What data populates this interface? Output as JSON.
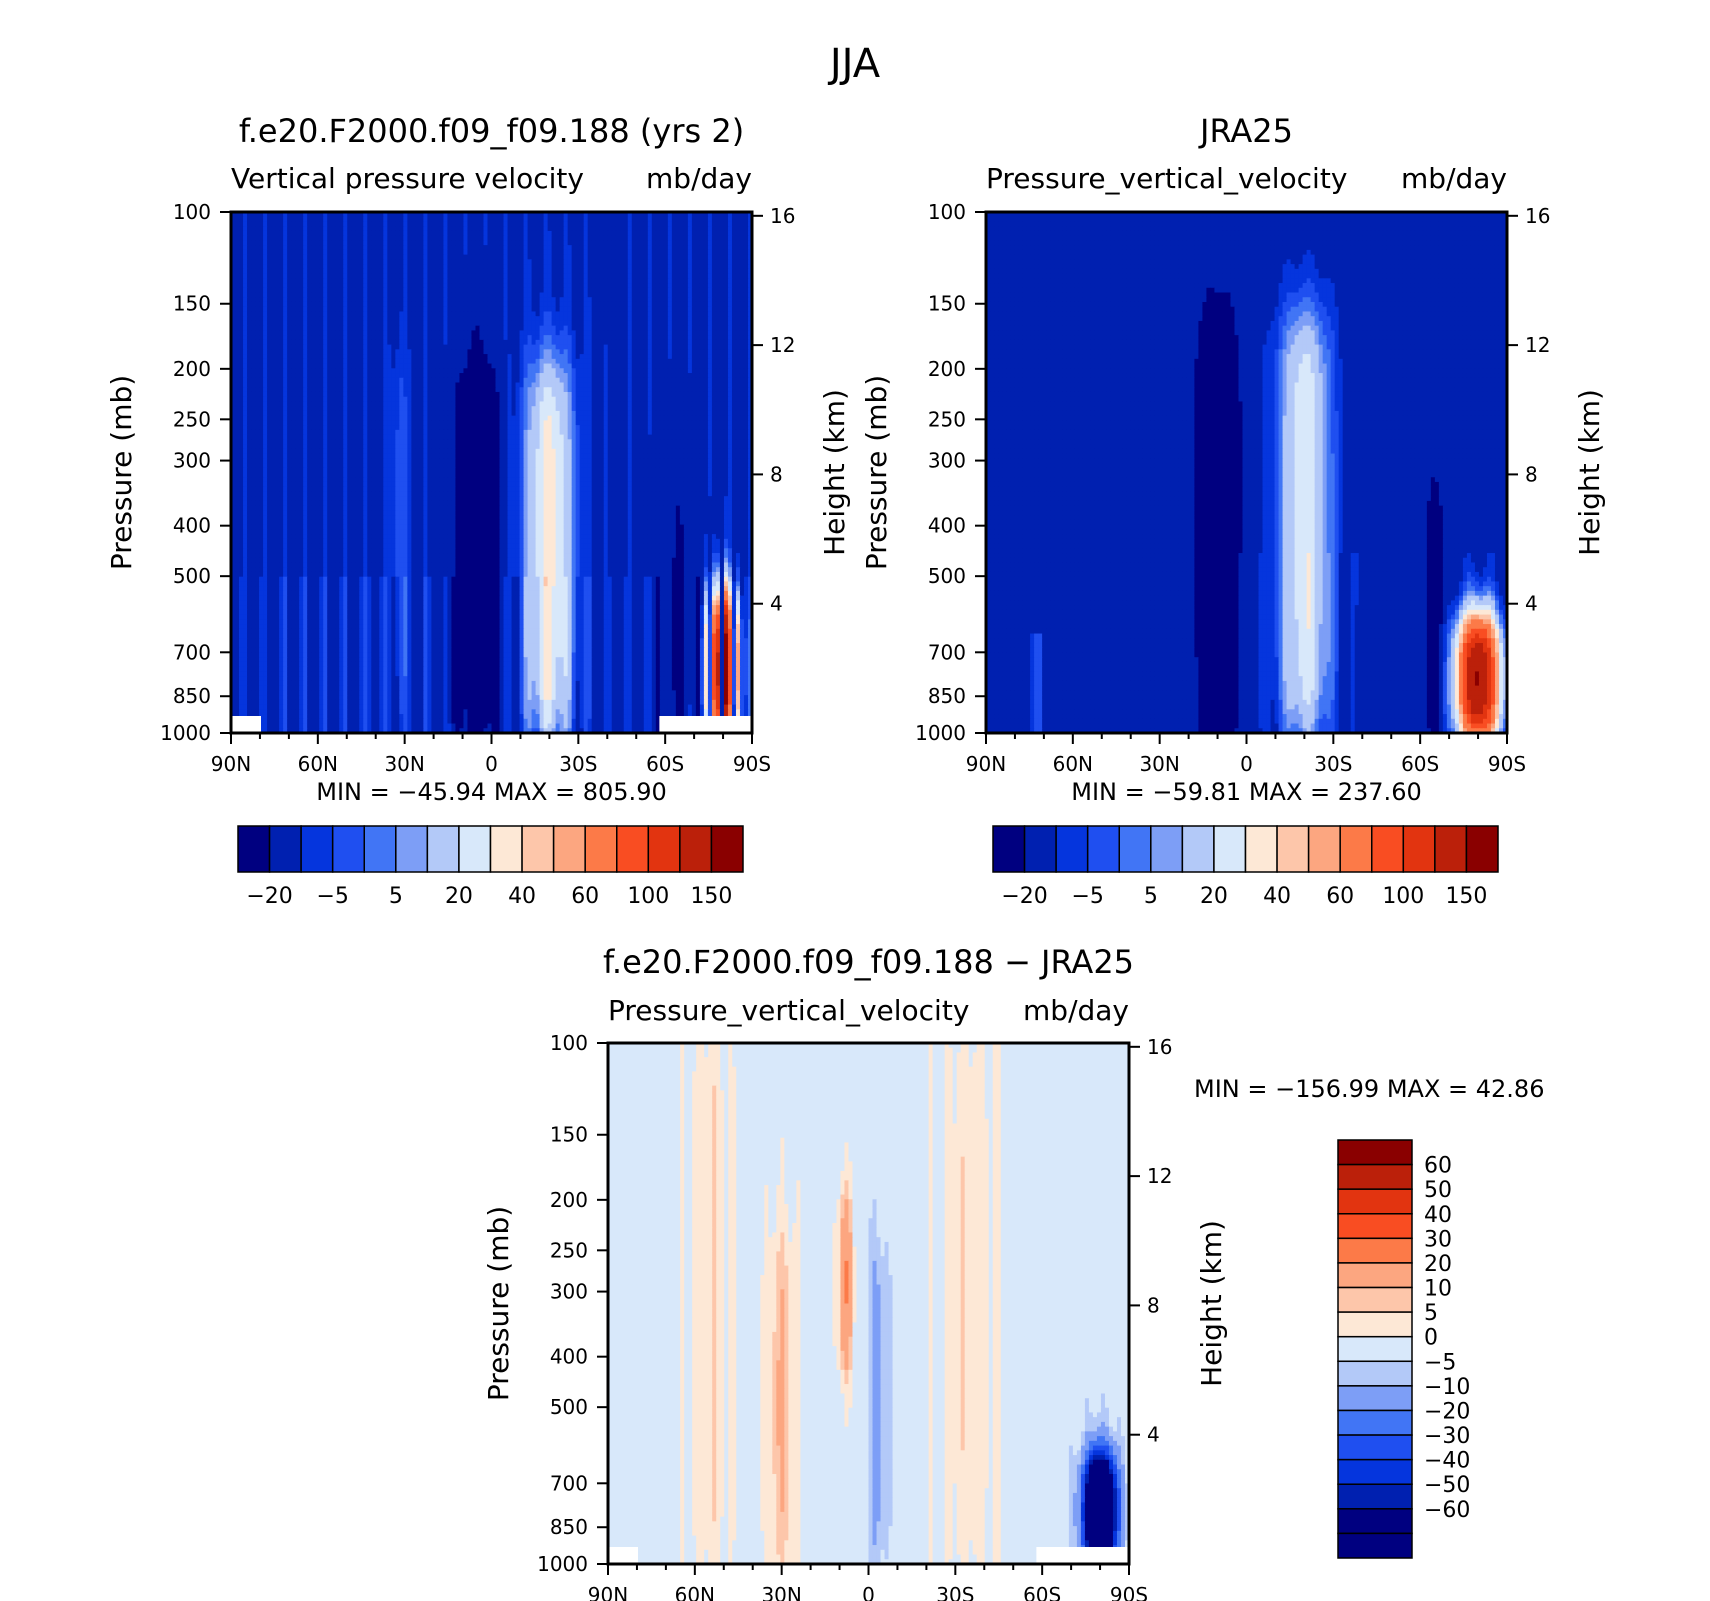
{
  "figure_title": "JJA",
  "palettes": {
    "abs": [
      "#000080",
      "#0020b0",
      "#0535dd",
      "#1f4ff0",
      "#4175f5",
      "#7d9ef6",
      "#b3c9f8",
      "#d8e8fa",
      "#fde8d6",
      "#fdc6aa",
      "#fca680",
      "#fc7a48",
      "#f94d22",
      "#e23410",
      "#bb200a",
      "#8a0000"
    ],
    "diff": [
      "#000080",
      "#0020b0",
      "#0535dd",
      "#1f4ff0",
      "#4175f5",
      "#7d9ef6",
      "#b3c9f8",
      "#d8e8fa",
      "#fde8d6",
      "#fdc6aa",
      "#fca680",
      "#fc7a48",
      "#f94d22",
      "#e23410",
      "#bb200a",
      "#8a0000"
    ]
  },
  "panels": [
    {
      "id": "model",
      "title": "f.e20.F2000.f09_f09.188 (yrs 2)",
      "subtitle_left": "Vertical pressure velocity",
      "subtitle_right": "mb/day",
      "ylabel": "Pressure (mb)",
      "ylabel2": "Height (km)",
      "min_max": "MIN = −45.94   MAX = 805.90",
      "colorbar_labels": [
        "−20",
        "−5",
        "5",
        "20",
        "40",
        "60",
        "100",
        "150"
      ]
    },
    {
      "id": "obs",
      "title": "JRA25",
      "subtitle_left": "Pressure_vertical_velocity",
      "subtitle_right": "mb/day",
      "ylabel": "Pressure (mb)",
      "ylabel2": "Height (km)",
      "min_max": "MIN = −59.81   MAX = 237.60",
      "colorbar_labels": [
        "−20",
        "−5",
        "5",
        "20",
        "40",
        "60",
        "100",
        "150"
      ]
    },
    {
      "id": "diff",
      "title": "f.e20.F2000.f09_f09.188 − JRA25",
      "subtitle_left": "Pressure_vertical_velocity",
      "subtitle_right": "mb/day",
      "ylabel": "Pressure (mb)",
      "ylabel2": "Height (km)",
      "min_max": "MIN = −156.99   MAX =   42.86",
      "colorbar_labels": [
        "60",
        "50",
        "40",
        "30",
        "20",
        "10",
        "5",
        "0",
        "−5",
        "−10",
        "−20",
        "−30",
        "−40",
        "−50",
        "−60"
      ]
    }
  ],
  "chart_data": [
    {
      "type": "heatmap",
      "title": "f.e20.F2000.f09_f09.188 (yrs 2)",
      "subtitle": "Vertical pressure velocity  mb/day",
      "x_tick_labels": [
        "90N",
        "60N",
        "30N",
        "0",
        "30S",
        "60S",
        "90S"
      ],
      "x_ticks": [
        90,
        60,
        30,
        0,
        -30,
        -60,
        -90
      ],
      "xlim": [
        90,
        -90
      ],
      "y_tick_labels": [
        "100",
        "150",
        "200",
        "250",
        "300",
        "400",
        "500",
        "700",
        "850",
        "1000"
      ],
      "y_ticks": [
        100,
        150,
        200,
        250,
        300,
        400,
        500,
        700,
        850,
        1000
      ],
      "ylim": [
        1000,
        100
      ],
      "y_scale": "log",
      "y2_tick_labels": [
        "16",
        "12",
        "8",
        "4"
      ],
      "ylabel": "Pressure (mb)",
      "y2label": "Height (km)",
      "min": -45.94,
      "max": 805.9,
      "contour_levels": [
        -20,
        -5,
        5,
        20,
        40,
        60,
        100,
        150
      ],
      "features": [
        {
          "feature": "deep ascent core",
          "lat_center": 5,
          "p_top": 200,
          "p_bottom": 1000,
          "peak": -45
        },
        {
          "feature": "subsidence column",
          "lat_center": -20,
          "p_top": 200,
          "p_bottom": 1000,
          "peak": 35
        },
        {
          "feature": "near-surface maximum over Antarctica",
          "lat_center": -80,
          "p_top": 550,
          "p_bottom": 1000,
          "peak": 805.9
        }
      ]
    },
    {
      "type": "heatmap",
      "title": "JRA25",
      "subtitle": "Pressure_vertical_velocity  mb/day",
      "x_tick_labels": [
        "90N",
        "60N",
        "30N",
        "0",
        "30S",
        "60S",
        "90S"
      ],
      "x_ticks": [
        90,
        60,
        30,
        0,
        -30,
        -60,
        -90
      ],
      "xlim": [
        90,
        -90
      ],
      "y_tick_labels": [
        "100",
        "150",
        "200",
        "250",
        "300",
        "400",
        "500",
        "700",
        "850",
        "1000"
      ],
      "y_ticks": [
        100,
        150,
        200,
        250,
        300,
        400,
        500,
        700,
        850,
        1000
      ],
      "ylim": [
        1000,
        100
      ],
      "y_scale": "log",
      "y2_tick_labels": [
        "16",
        "12",
        "8",
        "4"
      ],
      "ylabel": "Pressure (mb)",
      "y2label": "Height (km)",
      "min": -59.81,
      "max": 237.6,
      "contour_levels": [
        -20,
        -5,
        5,
        20,
        40,
        60,
        100,
        150
      ],
      "features": [
        {
          "feature": "deep ascent core",
          "lat_center": 10,
          "p_top": 175,
          "p_bottom": 1000,
          "peak": -59.8
        },
        {
          "feature": "subsidence column",
          "lat_center": -20,
          "p_top": 160,
          "p_bottom": 1000,
          "peak": 30
        },
        {
          "feature": "near-surface maximum over Antarctica",
          "lat_center": -80,
          "p_top": 620,
          "p_bottom": 1000,
          "peak": 237.6
        }
      ]
    },
    {
      "type": "heatmap",
      "title": "f.e20.F2000.f09_f09.188 − JRA25",
      "subtitle": "Pressure_vertical_velocity  mb/day",
      "x_tick_labels": [
        "90N",
        "60N",
        "30N",
        "0",
        "30S",
        "60S",
        "90S"
      ],
      "x_ticks": [
        90,
        60,
        30,
        0,
        -30,
        -60,
        -90
      ],
      "xlim": [
        90,
        -90
      ],
      "y_tick_labels": [
        "100",
        "150",
        "200",
        "250",
        "300",
        "400",
        "500",
        "700",
        "850",
        "1000"
      ],
      "y_ticks": [
        100,
        150,
        200,
        250,
        300,
        400,
        500,
        700,
        850,
        1000
      ],
      "ylim": [
        1000,
        100
      ],
      "y_scale": "log",
      "y2_tick_labels": [
        "16",
        "12",
        "8",
        "4"
      ],
      "ylabel": "Pressure (mb)",
      "y2label": "Height (km)",
      "min": -156.99,
      "max": 42.86,
      "contour_levels": [
        -60,
        -50,
        -40,
        -30,
        -20,
        -10,
        -5,
        0,
        5,
        10,
        20,
        30,
        40,
        50,
        60
      ],
      "features": [
        {
          "feature": "positive band",
          "lat_center": 30,
          "p_top": 250,
          "p_bottom": 1000,
          "peak": 15
        },
        {
          "feature": "positive band",
          "lat_center": 8,
          "p_top": 200,
          "p_bottom": 400,
          "peak": 25
        },
        {
          "feature": "negative band",
          "lat_center": -3,
          "p_top": 250,
          "p_bottom": 950,
          "peak": -10
        },
        {
          "feature": "strong negative near surface",
          "lat_center": -80,
          "p_top": 650,
          "p_bottom": 950,
          "peak": -156.99
        }
      ]
    }
  ]
}
